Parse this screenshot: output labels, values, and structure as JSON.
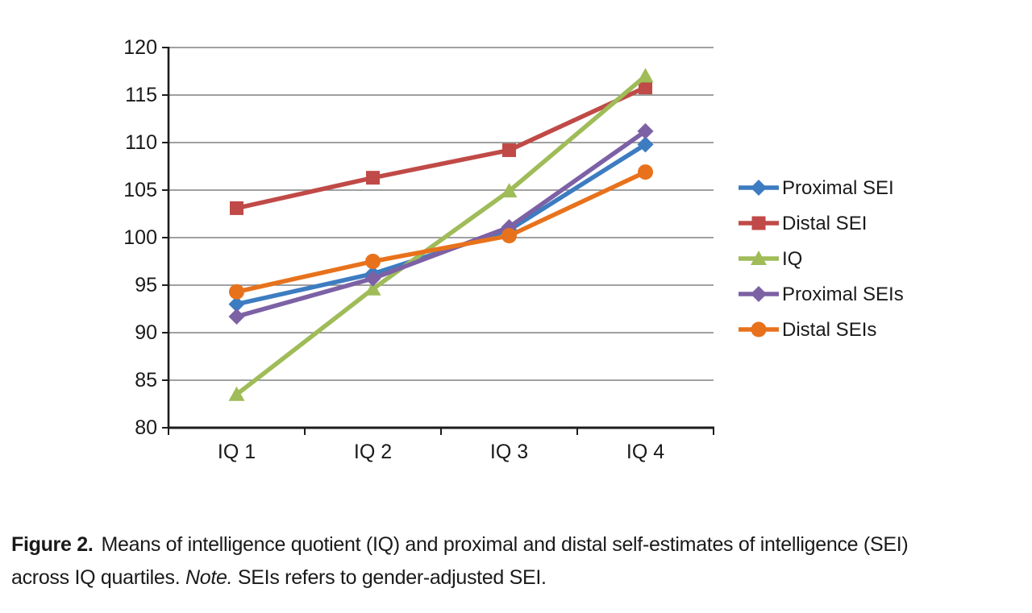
{
  "figure": {
    "caption": {
      "line1": {
        "label": "Figure 2.",
        "text": "Means of intelligence quotient (IQ) and proximal and distal self-estimates of intelligence (SEI)"
      },
      "line2": {
        "before_note": "across IQ quartiles. ",
        "note_label": "Note.",
        "after_note": " SEIs refers to gender-adjusted SEI."
      }
    }
  },
  "chart_data": {
    "type": "line",
    "title": "",
    "xlabel": "",
    "ylabel": "",
    "categories": [
      "IQ 1",
      "IQ 2",
      "IQ 3",
      "IQ 4"
    ],
    "series": [
      {
        "name": "Proximal SEI",
        "color": "#3D7CC1",
        "marker": "diamond",
        "values": [
          93.0,
          96.2,
          100.8,
          109.8
        ]
      },
      {
        "name": "Distal SEI",
        "color": "#C04A47",
        "marker": "square",
        "values": [
          103.1,
          106.3,
          109.2,
          115.8
        ]
      },
      {
        "name": "IQ",
        "color": "#9FBC58",
        "marker": "triangle",
        "values": [
          83.5,
          94.6,
          104.9,
          117.0
        ]
      },
      {
        "name": "Proximal SEIs",
        "color": "#7D61A5",
        "marker": "diamond",
        "values": [
          91.7,
          95.7,
          101.1,
          111.2
        ]
      },
      {
        "name": "Distal SEIs",
        "color": "#E8721C",
        "marker": "circle",
        "values": [
          94.3,
          97.5,
          100.2,
          106.9
        ]
      }
    ],
    "ylim": [
      80,
      120
    ],
    "ytick_step": 5,
    "yticks": [
      80,
      85,
      90,
      95,
      100,
      105,
      110,
      115,
      120
    ],
    "grid": true,
    "legend_position": "right",
    "gridline_color": "#808080",
    "axis_color": "#1c1c1c",
    "text_color": "#1a1a1a"
  }
}
